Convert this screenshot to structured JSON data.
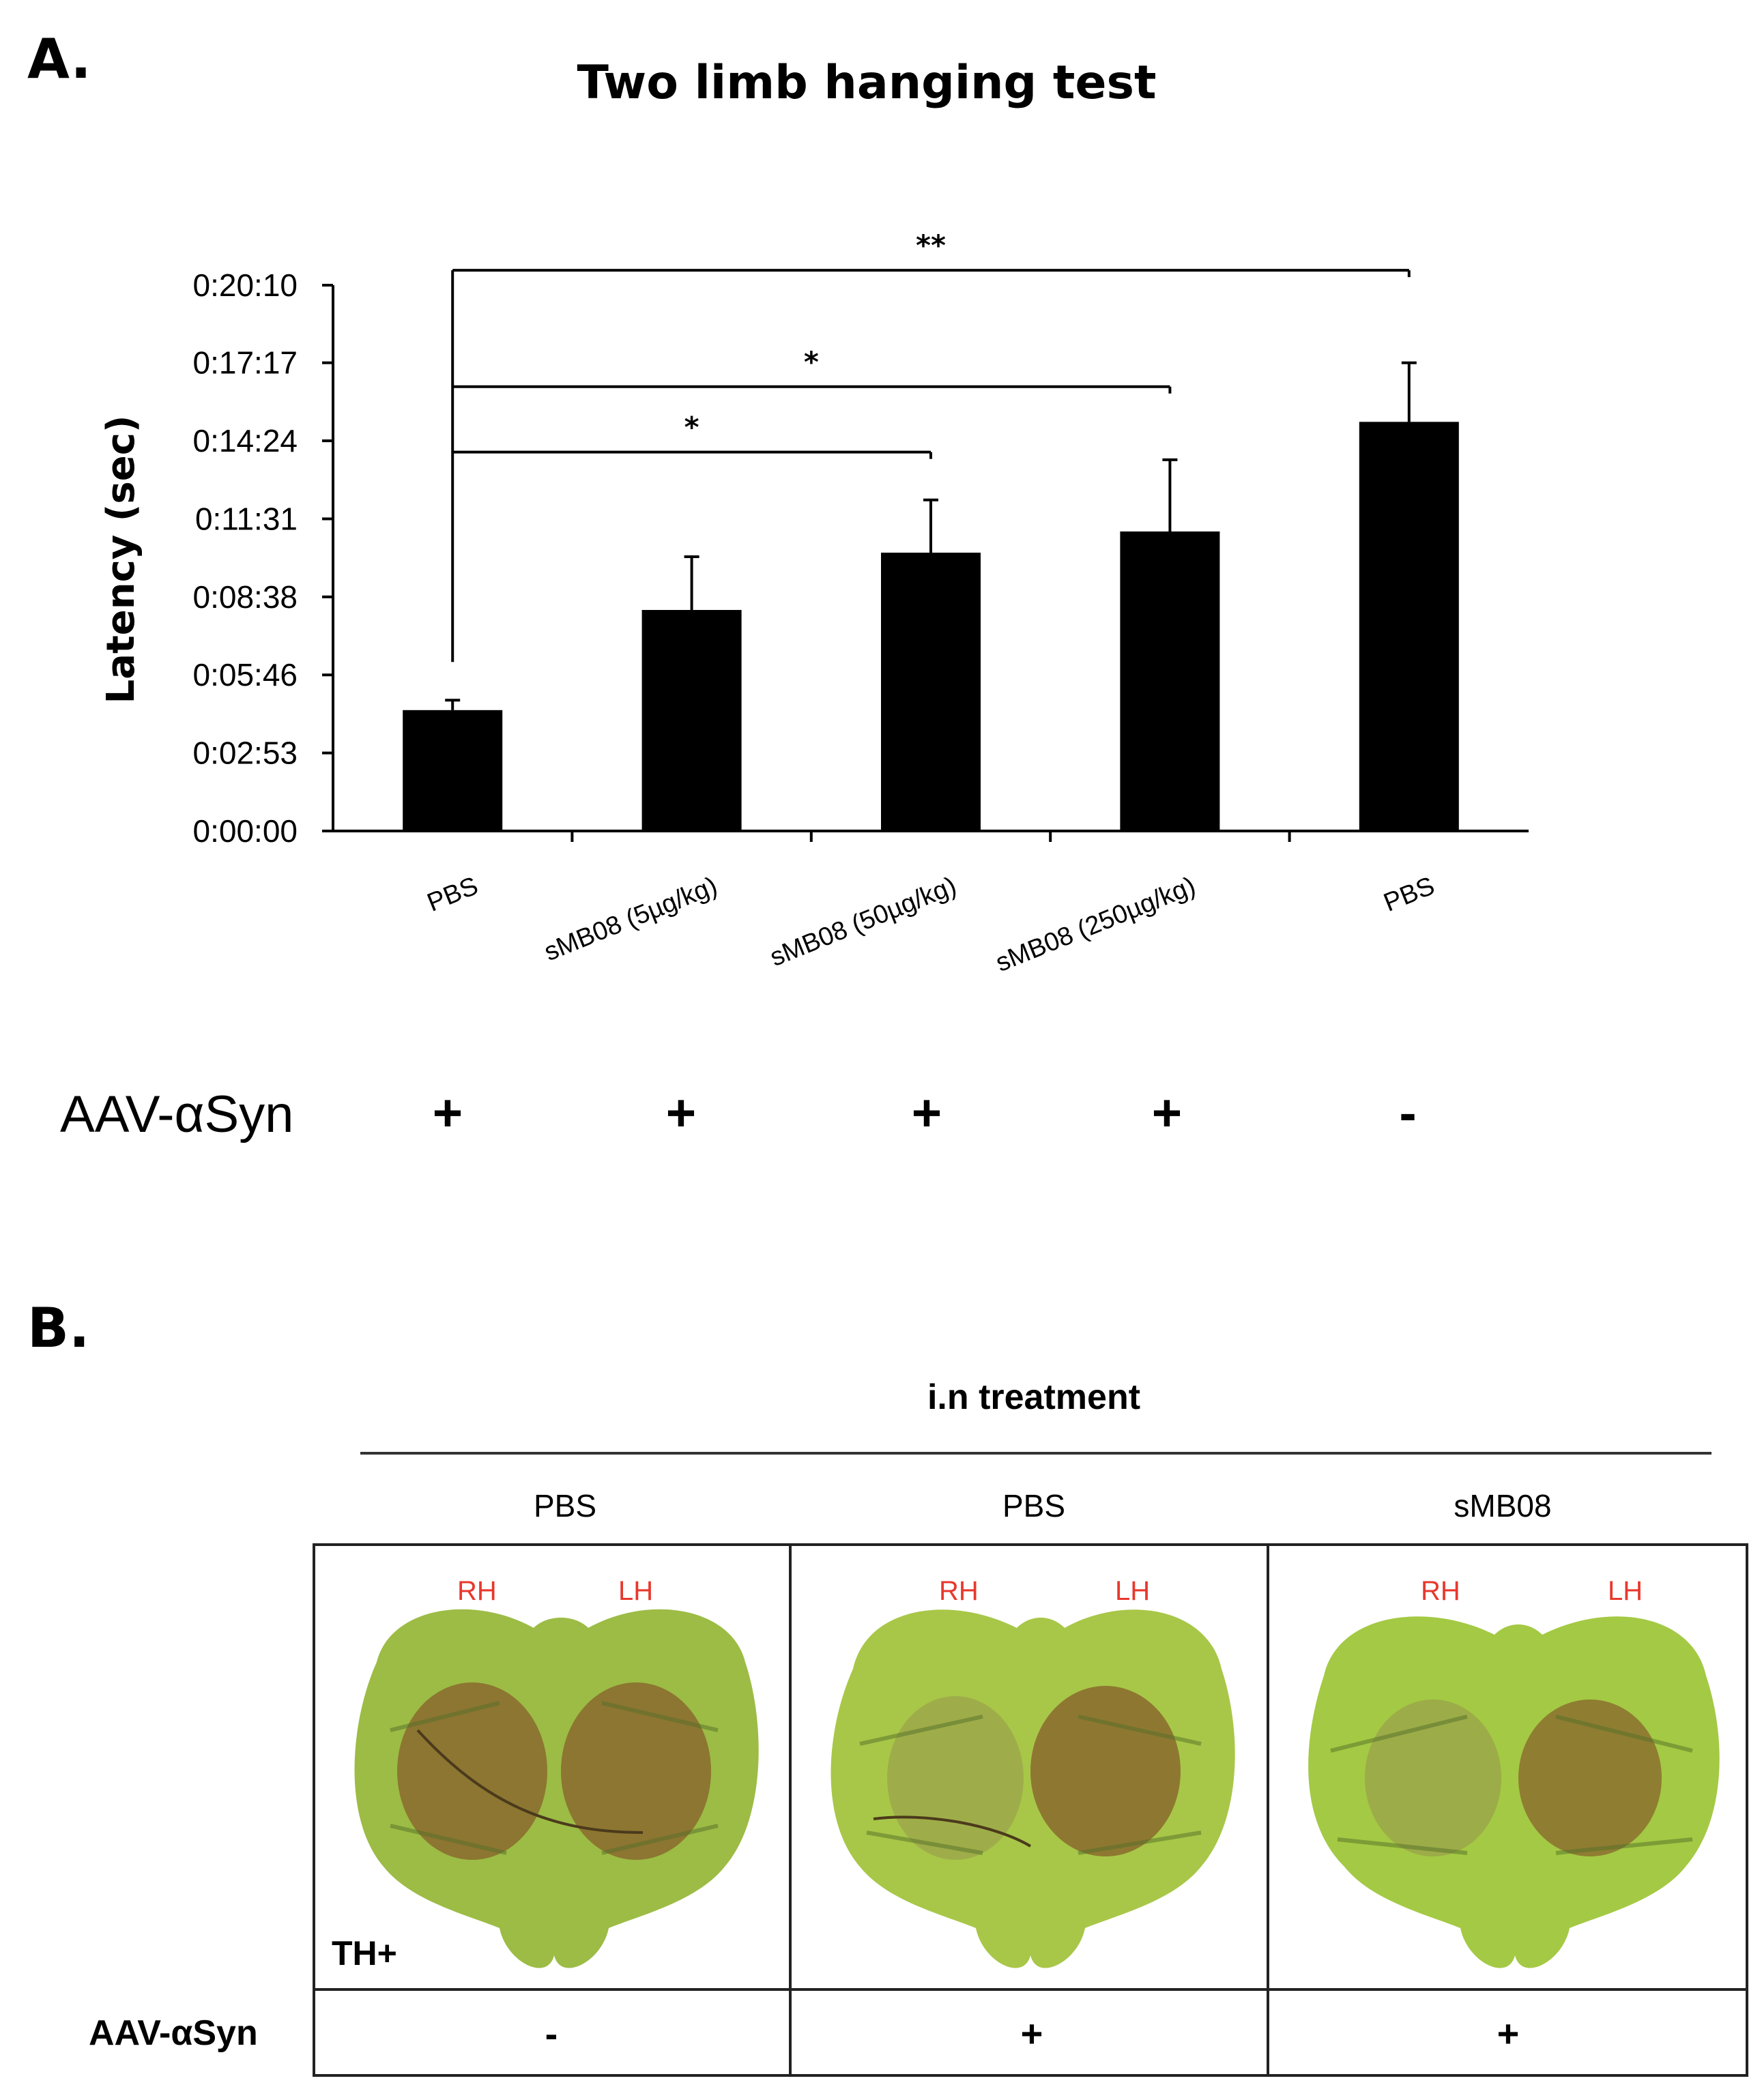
{
  "panel_a": {
    "label": "A.",
    "aav_label": "AAV-αSyn",
    "aav_signs": [
      "+",
      "+",
      "+",
      "+",
      "-"
    ]
  },
  "chart_data": {
    "type": "bar",
    "title": "Two limb hanging test",
    "ylabel": "Latency (sec)",
    "xlabel": "",
    "categories": [
      "PBS",
      "sMB08 (5µg/kg)",
      "sMB08 (50µg/kg)",
      "sMB08 (250µg/kg)",
      "PBS"
    ],
    "values": [
      268,
      490,
      617,
      664,
      907
    ],
    "errors": [
      22,
      118,
      117,
      159,
      131
    ],
    "ylim": [
      0,
      1210
    ],
    "yticks": [
      0,
      173,
      346,
      519,
      692,
      865,
      1038,
      1210
    ],
    "yticklabels": [
      "0:00:00",
      "0:02:53",
      "0:05:46",
      "0:08:38",
      "0:11:31",
      "0:14:24",
      "0:17:17",
      "0:20:10"
    ],
    "significance": [
      {
        "from": 0,
        "to": 2,
        "y": 840,
        "label": "*"
      },
      {
        "from": 0,
        "to": 3,
        "y": 985,
        "label": "*"
      },
      {
        "from": 0,
        "to": 4,
        "y": 1243,
        "label": "**"
      }
    ],
    "bar_color": "#000000",
    "grid": false
  },
  "panel_b": {
    "label": "B.",
    "header": "i.n treatment",
    "columns": [
      {
        "title": "PBS",
        "rh": "RH",
        "lh": "LH",
        "aav": "-"
      },
      {
        "title": "PBS",
        "rh": "RH",
        "lh": "LH",
        "aav": "+"
      },
      {
        "title": "sMB08",
        "rh": "RH",
        "lh": "LH",
        "aav": "+"
      }
    ],
    "stain_label": "TH+",
    "aav_label": "AAV-αSyn",
    "colors": {
      "hemisphere_label": "#e8382c",
      "tissue": "#8fb23a",
      "striatum": "#7a5a2a"
    }
  }
}
